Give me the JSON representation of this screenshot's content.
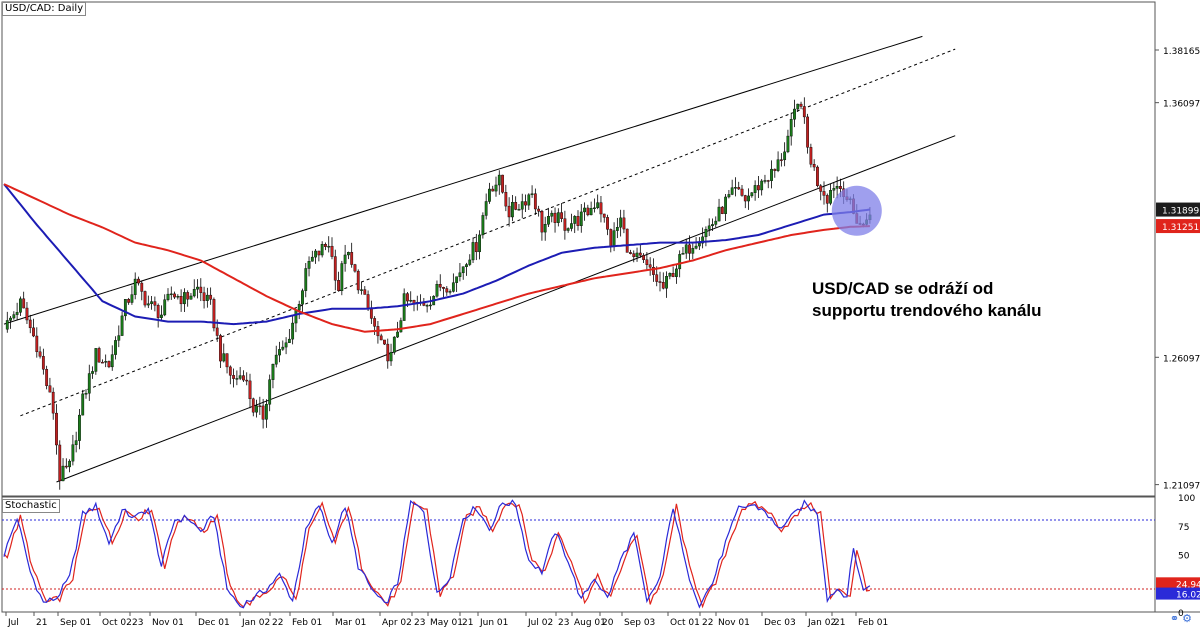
{
  "header": {
    "symbol_label": "USD/CAD: Daily"
  },
  "annotation": {
    "line1": "USD/CAD se odráží od",
    "line2": "supportu trendového kanálu"
  },
  "lower_panel": {
    "label": "Stochastic"
  },
  "colors": {
    "bull": "#1a7a1a",
    "bear": "#c02020",
    "sma_fast": "#1c1cb4",
    "sma_slow": "#e0241c",
    "channel": "#000000",
    "circle_fill": "#7f7fe8",
    "price_badge": "#1c1c1c",
    "ma_badge": "#e0241c",
    "stoch_k": "#2a2ad8",
    "stoch_d": "#e0241c",
    "level_upper": "#2a2ad8",
    "level_lower": "#d02020",
    "badge_d": "#2a2ad8"
  },
  "icons": [
    "chart-layout-icon",
    "settings-icon"
  ],
  "chart_data": [
    {
      "type": "candlestick",
      "title": "USD/CAD: Daily",
      "ylim": [
        1.2065,
        1.4005
      ],
      "y_ticks": [
        "1.38165",
        "1.36097",
        "1.26097",
        "1.21097"
      ],
      "x_ticks": [
        "Jul",
        "21",
        "Sep 01",
        "Oct 02",
        "23",
        "Nov 01",
        "Dec 01",
        "Jan 02",
        "22",
        "Feb 01",
        "Mar 01",
        "Apr 02",
        "23",
        "May 01",
        "21",
        "Jun 01",
        "Jul 02",
        "23",
        "Aug 01",
        "20",
        "Sep 03",
        "Oct 01",
        "22",
        "Nov 01",
        "Dec 03",
        "Jan 02",
        "21",
        "Feb 01"
      ],
      "price_badges": [
        {
          "label": "1.31899",
          "value": 1.31899,
          "kind": "price"
        },
        {
          "label": "1.31251",
          "value": 1.31251,
          "kind": "ma"
        }
      ],
      "anchors": [
        [
          0,
          1.272
        ],
        [
          5,
          1.282
        ],
        [
          10,
          1.266
        ],
        [
          15,
          1.24
        ],
        [
          17,
          1.214
        ],
        [
          20,
          1.218
        ],
        [
          24,
          1.244
        ],
        [
          28,
          1.262
        ],
        [
          32,
          1.258
        ],
        [
          37,
          1.281
        ],
        [
          40,
          1.29
        ],
        [
          44,
          1.282
        ],
        [
          48,
          1.278
        ],
        [
          51,
          1.286
        ],
        [
          55,
          1.284
        ],
        [
          59,
          1.288
        ],
        [
          63,
          1.281
        ],
        [
          66,
          1.262
        ],
        [
          70,
          1.252
        ],
        [
          73,
          1.255
        ],
        [
          76,
          1.241
        ],
        [
          79,
          1.238
        ],
        [
          82,
          1.259
        ],
        [
          86,
          1.266
        ],
        [
          89,
          1.279
        ],
        [
          93,
          1.298
        ],
        [
          96,
          1.302
        ],
        [
          99,
          1.306
        ],
        [
          102,
          1.288
        ],
        [
          104,
          1.303
        ],
        [
          108,
          1.29
        ],
        [
          112,
          1.276
        ],
        [
          115,
          1.265
        ],
        [
          118,
          1.261
        ],
        [
          122,
          1.283
        ],
        [
          126,
          1.281
        ],
        [
          130,
          1.284
        ],
        [
          133,
          1.289
        ],
        [
          137,
          1.29
        ],
        [
          141,
          1.3
        ],
        [
          144,
          1.305
        ],
        [
          148,
          1.328
        ],
        [
          151,
          1.33
        ],
        [
          154,
          1.318
        ],
        [
          158,
          1.322
        ],
        [
          161,
          1.326
        ],
        [
          164,
          1.312
        ],
        [
          168,
          1.316
        ],
        [
          171,
          1.313
        ],
        [
          175,
          1.315
        ],
        [
          178,
          1.318
        ],
        [
          181,
          1.323
        ],
        [
          185,
          1.306
        ],
        [
          188,
          1.315
        ],
        [
          191,
          1.3
        ],
        [
          194,
          1.299
        ],
        [
          198,
          1.293
        ],
        [
          201,
          1.288
        ],
        [
          204,
          1.295
        ],
        [
          207,
          1.301
        ],
        [
          210,
          1.306
        ],
        [
          214,
          1.311
        ],
        [
          217,
          1.315
        ],
        [
          220,
          1.322
        ],
        [
          223,
          1.326
        ],
        [
          226,
          1.323
        ],
        [
          229,
          1.327
        ],
        [
          232,
          1.331
        ],
        [
          235,
          1.334
        ],
        [
          238,
          1.343
        ],
        [
          241,
          1.356
        ],
        [
          243,
          1.362
        ],
        [
          245,
          1.343
        ],
        [
          248,
          1.33
        ],
        [
          251,
          1.324
        ],
        [
          253,
          1.329
        ],
        [
          256,
          1.327
        ],
        [
          259,
          1.317
        ],
        [
          262,
          1.312
        ],
        [
          264,
          1.319
        ]
      ],
      "sma_fast": [
        [
          0,
          1.329
        ],
        [
          10,
          1.313
        ],
        [
          20,
          1.298
        ],
        [
          30,
          1.283
        ],
        [
          40,
          1.277
        ],
        [
          50,
          1.275
        ],
        [
          60,
          1.275
        ],
        [
          70,
          1.274
        ],
        [
          80,
          1.275
        ],
        [
          90,
          1.278
        ],
        [
          100,
          1.28
        ],
        [
          110,
          1.28
        ],
        [
          120,
          1.281
        ],
        [
          130,
          1.283
        ],
        [
          140,
          1.286
        ],
        [
          150,
          1.291
        ],
        [
          160,
          1.297
        ],
        [
          170,
          1.302
        ],
        [
          180,
          1.304
        ],
        [
          190,
          1.305
        ],
        [
          200,
          1.306
        ],
        [
          210,
          1.306
        ],
        [
          220,
          1.307
        ],
        [
          230,
          1.309
        ],
        [
          240,
          1.313
        ],
        [
          250,
          1.317
        ],
        [
          258,
          1.318
        ],
        [
          264,
          1.319
        ]
      ],
      "sma_slow": [
        [
          0,
          1.329
        ],
        [
          10,
          1.323
        ],
        [
          20,
          1.317
        ],
        [
          30,
          1.312
        ],
        [
          40,
          1.306
        ],
        [
          50,
          1.303
        ],
        [
          60,
          1.299
        ],
        [
          70,
          1.292
        ],
        [
          80,
          1.285
        ],
        [
          90,
          1.279
        ],
        [
          100,
          1.274
        ],
        [
          110,
          1.271
        ],
        [
          120,
          1.272
        ],
        [
          130,
          1.274
        ],
        [
          140,
          1.278
        ],
        [
          150,
          1.282
        ],
        [
          160,
          1.286
        ],
        [
          170,
          1.289
        ],
        [
          180,
          1.292
        ],
        [
          190,
          1.294
        ],
        [
          200,
          1.296
        ],
        [
          210,
          1.299
        ],
        [
          220,
          1.303
        ],
        [
          230,
          1.306
        ],
        [
          240,
          1.309
        ],
        [
          250,
          1.311
        ],
        [
          258,
          1.3122
        ],
        [
          264,
          1.3125
        ]
      ],
      "channel_lines": [
        {
          "style": "solid",
          "from": [
            0,
            1.274
          ],
          "to": [
            280,
            1.387
          ]
        },
        {
          "style": "dashed",
          "from": [
            5,
            1.238
          ],
          "to": [
            290,
            1.382
          ]
        },
        {
          "style": "solid",
          "from": [
            16,
            1.212
          ],
          "to": [
            290,
            1.348
          ]
        }
      ]
    },
    {
      "type": "line",
      "title": "Stochastic",
      "ylim": [
        0,
        100
      ],
      "y_ticks": [
        "100",
        "75",
        "50",
        "25",
        "0"
      ],
      "levels": [
        80,
        20
      ],
      "value_badges": [
        {
          "label": "24.94",
          "value": 24.94,
          "series": "%K"
        },
        {
          "label": "16.02",
          "value": 16.02,
          "series": "%D"
        }
      ],
      "anchors": [
        [
          0,
          50
        ],
        [
          4,
          82
        ],
        [
          8,
          35
        ],
        [
          12,
          8
        ],
        [
          16,
          12
        ],
        [
          20,
          30
        ],
        [
          24,
          85
        ],
        [
          28,
          92
        ],
        [
          32,
          60
        ],
        [
          36,
          88
        ],
        [
          40,
          82
        ],
        [
          44,
          90
        ],
        [
          48,
          40
        ],
        [
          52,
          80
        ],
        [
          56,
          82
        ],
        [
          60,
          70
        ],
        [
          64,
          84
        ],
        [
          68,
          20
        ],
        [
          72,
          5
        ],
        [
          76,
          12
        ],
        [
          80,
          20
        ],
        [
          84,
          32
        ],
        [
          88,
          10
        ],
        [
          92,
          70
        ],
        [
          96,
          93
        ],
        [
          100,
          60
        ],
        [
          104,
          92
        ],
        [
          108,
          40
        ],
        [
          112,
          20
        ],
        [
          116,
          6
        ],
        [
          120,
          25
        ],
        [
          124,
          95
        ],
        [
          128,
          88
        ],
        [
          132,
          15
        ],
        [
          136,
          32
        ],
        [
          140,
          82
        ],
        [
          144,
          91
        ],
        [
          148,
          72
        ],
        [
          152,
          95
        ],
        [
          156,
          94
        ],
        [
          160,
          45
        ],
        [
          164,
          35
        ],
        [
          168,
          70
        ],
        [
          172,
          45
        ],
        [
          176,
          10
        ],
        [
          180,
          30
        ],
        [
          184,
          12
        ],
        [
          188,
          45
        ],
        [
          192,
          68
        ],
        [
          196,
          8
        ],
        [
          200,
          30
        ],
        [
          204,
          92
        ],
        [
          208,
          38
        ],
        [
          212,
          7
        ],
        [
          216,
          25
        ],
        [
          220,
          60
        ],
        [
          224,
          90
        ],
        [
          228,
          93
        ],
        [
          232,
          88
        ],
        [
          236,
          72
        ],
        [
          240,
          82
        ],
        [
          244,
          94
        ],
        [
          248,
          86
        ],
        [
          251,
          12
        ],
        [
          254,
          20
        ],
        [
          257,
          14
        ],
        [
          259,
          55
        ],
        [
          262,
          18
        ],
        [
          264,
          25
        ]
      ]
    }
  ]
}
